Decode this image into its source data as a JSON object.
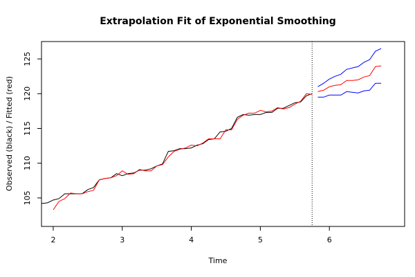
{
  "chart_data": {
    "type": "line",
    "title": "Extrapolation Fit of Exponential Smoothing",
    "xlabel": "Time",
    "ylabel": "Observed (black) / Fitted (red)",
    "x": [
      1.833,
      1.917,
      2,
      2.083,
      2.167,
      2.25,
      2.333,
      2.417,
      2.5,
      2.583,
      2.667,
      2.75,
      2.833,
      2.917,
      3,
      3.083,
      3.167,
      3.25,
      3.333,
      3.417,
      3.5,
      3.583,
      3.667,
      3.75,
      3.833,
      3.917,
      4,
      4.083,
      4.167,
      4.25,
      4.333,
      4.417,
      4.5,
      4.583,
      4.667,
      4.75,
      4.833,
      4.917,
      5,
      5.083,
      5.167,
      5.25,
      5.333,
      5.417,
      5.5,
      5.583,
      5.667,
      5.75,
      5.833,
      5.917,
      6,
      6.083,
      6.167,
      6.25,
      6.333,
      6.417,
      6.5,
      6.583,
      6.667,
      6.75
    ],
    "series": [
      {
        "color": "#000000",
        "values": [
          104.2,
          104.3,
          104.7,
          104.9,
          105.6,
          105.6,
          105.6,
          105.6,
          106.2,
          106.5,
          107.6,
          107.8,
          107.9,
          108.5,
          108.2,
          108.5,
          108.6,
          109.0,
          109.0,
          109.2,
          109.6,
          109.9,
          111.7,
          111.8,
          112.1,
          112.1,
          112.2,
          112.6,
          112.8,
          113.4,
          113.5,
          114.5,
          114.6,
          115.0,
          116.6,
          117.0,
          116.9,
          117.0,
          117.0,
          117.3,
          117.3,
          117.9,
          117.9,
          118.3,
          118.7,
          118.8,
          119.7,
          120.0,
          null,
          null,
          null,
          null,
          null,
          null,
          null,
          null,
          null,
          null,
          null,
          null
        ]
      },
      {
        "color": "#ff0000",
        "values": [
          null,
          null,
          103.3,
          104.5,
          104.9,
          105.7,
          105.6,
          105.6,
          105.9,
          106.1,
          107.6,
          107.8,
          107.9,
          108.2,
          108.9,
          108.4,
          108.5,
          109.1,
          108.9,
          108.9,
          109.6,
          109.8,
          110.9,
          111.7,
          112.0,
          112.2,
          112.6,
          112.5,
          112.9,
          113.5,
          113.5,
          113.5,
          114.8,
          114.8,
          116.3,
          116.9,
          117.2,
          117.2,
          117.6,
          117.4,
          117.5,
          118.0,
          117.8,
          118.0,
          118.5,
          118.9,
          120.0,
          119.9,
          null,
          null,
          null,
          null,
          null,
          null,
          null,
          null,
          null,
          null,
          null,
          null
        ]
      },
      {
        "color": "#ff0000",
        "values": [
          null,
          null,
          null,
          null,
          null,
          null,
          null,
          null,
          null,
          null,
          null,
          null,
          null,
          null,
          null,
          null,
          null,
          null,
          null,
          null,
          null,
          null,
          null,
          null,
          null,
          null,
          null,
          null,
          null,
          null,
          null,
          null,
          null,
          null,
          null,
          null,
          null,
          null,
          null,
          null,
          null,
          null,
          null,
          null,
          null,
          null,
          null,
          null,
          120.3,
          120.5,
          121.0,
          121.2,
          121.3,
          121.9,
          121.9,
          122.0,
          122.4,
          122.6,
          123.9,
          124.0
        ]
      },
      {
        "color": "#0000ff",
        "values": [
          null,
          null,
          null,
          null,
          null,
          null,
          null,
          null,
          null,
          null,
          null,
          null,
          null,
          null,
          null,
          null,
          null,
          null,
          null,
          null,
          null,
          null,
          null,
          null,
          null,
          null,
          null,
          null,
          null,
          null,
          null,
          null,
          null,
          null,
          null,
          null,
          null,
          null,
          null,
          null,
          null,
          null,
          null,
          null,
          null,
          null,
          null,
          null,
          121.0,
          121.5,
          122.1,
          122.5,
          122.8,
          123.5,
          123.7,
          123.9,
          124.5,
          124.9,
          126.1,
          126.5
        ]
      },
      {
        "color": "#0000ff",
        "values": [
          null,
          null,
          null,
          null,
          null,
          null,
          null,
          null,
          null,
          null,
          null,
          null,
          null,
          null,
          null,
          null,
          null,
          null,
          null,
          null,
          null,
          null,
          null,
          null,
          null,
          null,
          null,
          null,
          null,
          null,
          null,
          null,
          null,
          null,
          null,
          null,
          null,
          null,
          null,
          null,
          null,
          null,
          null,
          null,
          null,
          null,
          null,
          null,
          119.5,
          119.5,
          119.8,
          119.8,
          119.8,
          120.3,
          120.2,
          120.1,
          120.4,
          120.5,
          121.5,
          121.5
        ]
      }
    ],
    "vlines": [
      5.75
    ],
    "xlim": [
      1.83,
      7.09
    ],
    "ylim": [
      100.9,
      127.5
    ],
    "xticks": [
      2,
      3,
      4,
      5,
      6
    ],
    "yticks": [
      105,
      110,
      115,
      120,
      125
    ]
  }
}
